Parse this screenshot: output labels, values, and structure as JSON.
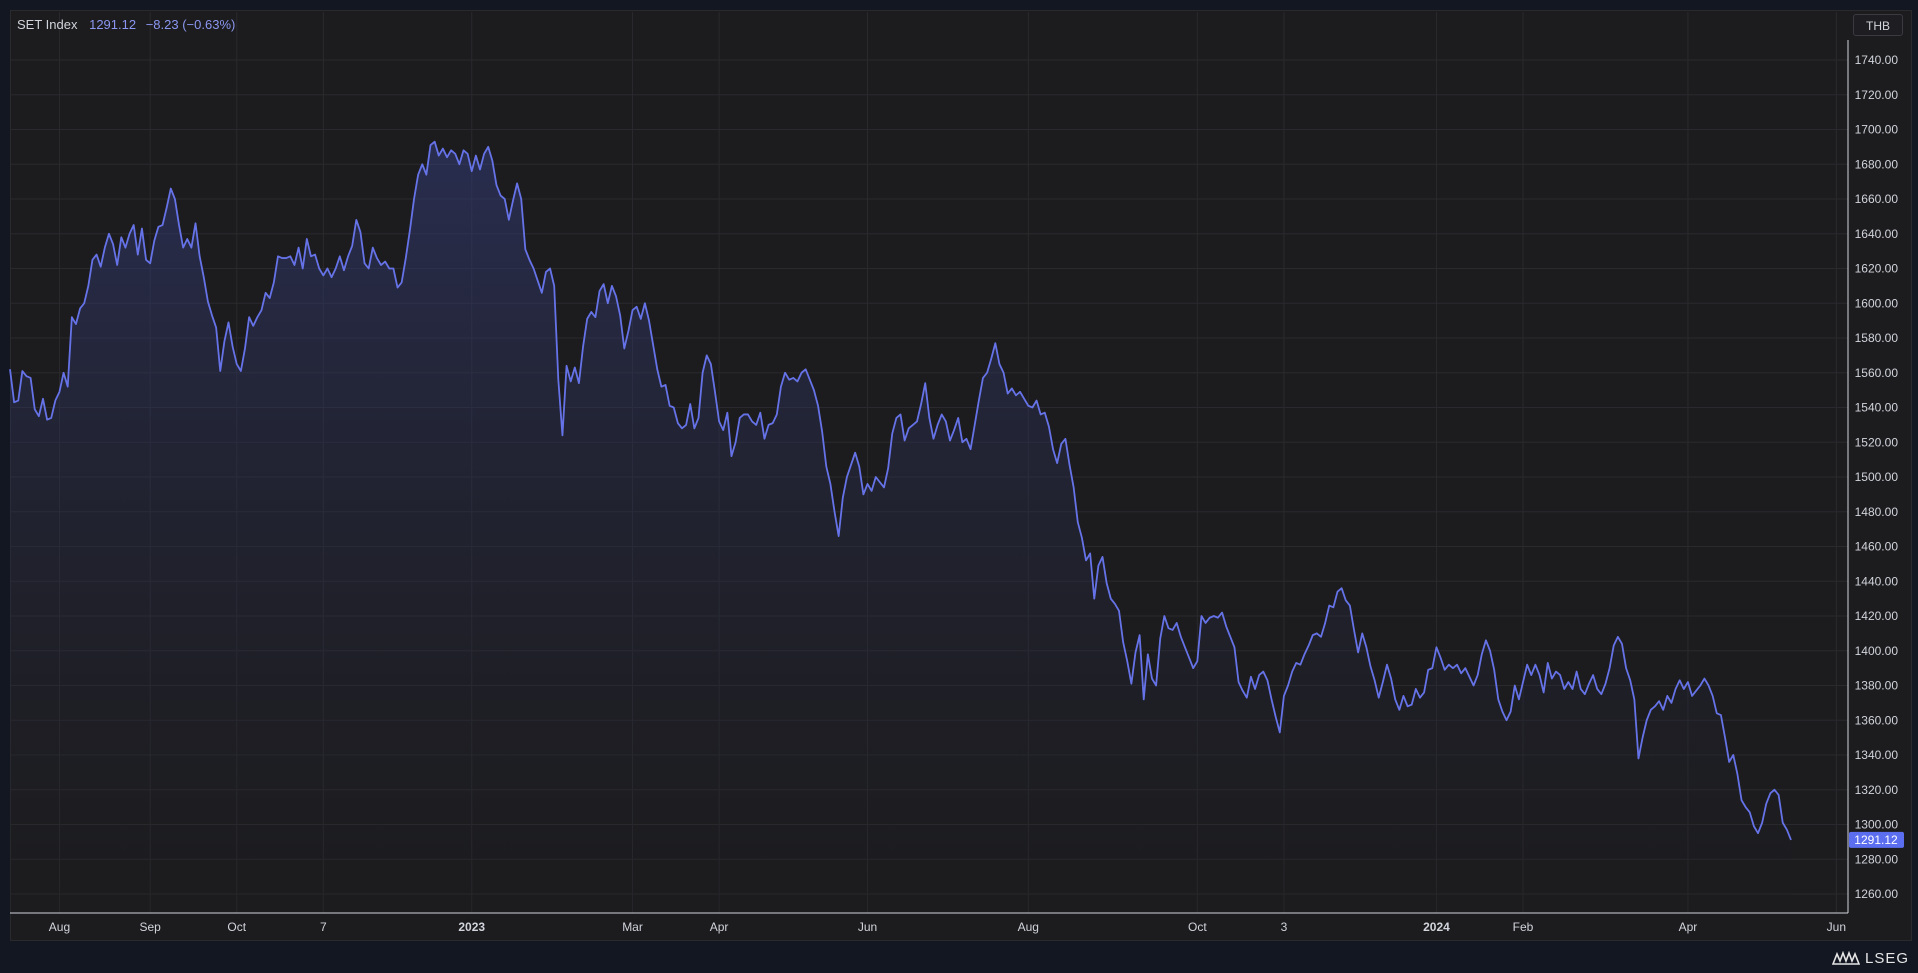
{
  "legend": {
    "name": "SET Index",
    "value": "1291.12",
    "change": "−8.23 (−0.63%)"
  },
  "currency_button": "THB",
  "logo_text": "LSEG",
  "colors": {
    "line": "#6673e8",
    "fill_top": "#343c78",
    "background": "#1c1c1e",
    "price_tag": "#5b6ef0"
  },
  "chart_data": {
    "type": "area",
    "title": "SET Index",
    "y_range": [
      1250,
      1750
    ],
    "last_value": "1291.12",
    "y_ticks": [
      "1740.00",
      "1720.00",
      "1700.00",
      "1680.00",
      "1660.00",
      "1640.00",
      "1620.00",
      "1600.00",
      "1580.00",
      "1560.00",
      "1540.00",
      "1520.00",
      "1500.00",
      "1480.00",
      "1460.00",
      "1440.00",
      "1420.00",
      "1400.00",
      "1380.00",
      "1360.00",
      "1340.00",
      "1320.00",
      "1300.00",
      "1280.00",
      "1260.00"
    ],
    "x_ticks": [
      {
        "label": "Aug",
        "index": 12,
        "bold": false
      },
      {
        "label": "Sep",
        "index": 34,
        "bold": false
      },
      {
        "label": "Oct",
        "index": 55,
        "bold": false
      },
      {
        "label": "7",
        "index": 76,
        "bold": false
      },
      {
        "label": "2023",
        "index": 112,
        "bold": true
      },
      {
        "label": "Mar",
        "index": 151,
        "bold": false
      },
      {
        "label": "Apr",
        "index": 172,
        "bold": false
      },
      {
        "label": "Jun",
        "index": 208,
        "bold": false
      },
      {
        "label": "Aug",
        "index": 247,
        "bold": false
      },
      {
        "label": "Oct",
        "index": 288,
        "bold": false
      },
      {
        "label": "3",
        "index": 309,
        "bold": false
      },
      {
        "label": "2024",
        "index": 346,
        "bold": true
      },
      {
        "label": "Feb",
        "index": 367,
        "bold": false
      },
      {
        "label": "Apr",
        "index": 407,
        "bold": false
      },
      {
        "label": "Jun",
        "index": 443,
        "bold": false
      }
    ],
    "series": [
      {
        "values": [
          1562,
          1543,
          1544,
          1561,
          1558,
          1557,
          1539,
          1535,
          1545,
          1533,
          1534,
          1544,
          1549,
          1560,
          1552,
          1592,
          1588,
          1597,
          1600,
          1610,
          1625,
          1628,
          1621,
          1632,
          1640,
          1634,
          1622,
          1638,
          1632,
          1640,
          1645,
          1628,
          1643,
          1625,
          1623,
          1636,
          1644,
          1645,
          1655,
          1666,
          1660,
          1645,
          1632,
          1637,
          1632,
          1646,
          1627,
          1615,
          1601,
          1593,
          1586,
          1561,
          1578,
          1589,
          1575,
          1565,
          1561,
          1574,
          1592,
          1587,
          1592,
          1596,
          1606,
          1603,
          1612,
          1627,
          1626,
          1626,
          1627,
          1622,
          1632,
          1620,
          1637,
          1627,
          1628,
          1620,
          1616,
          1620,
          1615,
          1620,
          1627,
          1619,
          1627,
          1633,
          1648,
          1641,
          1623,
          1620,
          1632,
          1626,
          1622,
          1624,
          1620,
          1620,
          1609,
          1612,
          1626,
          1642,
          1660,
          1674,
          1680,
          1674,
          1691,
          1693,
          1685,
          1689,
          1684,
          1688,
          1686,
          1680,
          1688,
          1686,
          1676,
          1685,
          1677,
          1686,
          1690,
          1682,
          1668,
          1662,
          1660,
          1648,
          1659,
          1669,
          1660,
          1631,
          1625,
          1620,
          1613,
          1606,
          1618,
          1620,
          1610,
          1556,
          1524,
          1564,
          1555,
          1563,
          1554,
          1575,
          1591,
          1595,
          1592,
          1607,
          1611,
          1600,
          1610,
          1604,
          1593,
          1574,
          1584,
          1596,
          1598,
          1591,
          1600,
          1590,
          1576,
          1562,
          1552,
          1553,
          1541,
          1540,
          1531,
          1528,
          1530,
          1542,
          1528,
          1534,
          1560,
          1570,
          1565,
          1549,
          1532,
          1527,
          1537,
          1512,
          1520,
          1534,
          1536,
          1536,
          1532,
          1530,
          1537,
          1522,
          1530,
          1531,
          1536,
          1552,
          1560,
          1556,
          1557,
          1555,
          1560,
          1562,
          1556,
          1550,
          1541,
          1526,
          1506,
          1496,
          1480,
          1466,
          1488,
          1500,
          1507,
          1514,
          1506,
          1490,
          1496,
          1492,
          1500,
          1497,
          1494,
          1505,
          1525,
          1534,
          1536,
          1521,
          1528,
          1530,
          1532,
          1542,
          1554,
          1534,
          1522,
          1530,
          1536,
          1532,
          1521,
          1527,
          1534,
          1520,
          1522,
          1516,
          1530,
          1544,
          1557,
          1560,
          1568,
          1577,
          1565,
          1560,
          1548,
          1551,
          1547,
          1549,
          1545,
          1541,
          1540,
          1544,
          1536,
          1537,
          1529,
          1516,
          1508,
          1519,
          1522,
          1507,
          1494,
          1474,
          1465,
          1452,
          1456,
          1430,
          1449,
          1454,
          1439,
          1430,
          1427,
          1423,
          1405,
          1394,
          1381,
          1399,
          1409,
          1372,
          1398,
          1384,
          1380,
          1407,
          1420,
          1413,
          1412,
          1416,
          1408,
          1402,
          1396,
          1390,
          1394,
          1420,
          1416,
          1419,
          1420,
          1419,
          1422,
          1414,
          1408,
          1402,
          1382,
          1377,
          1373,
          1385,
          1378,
          1386,
          1388,
          1383,
          1372,
          1362,
          1353,
          1374,
          1380,
          1388,
          1393,
          1392,
          1398,
          1403,
          1409,
          1410,
          1408,
          1416,
          1426,
          1425,
          1434,
          1436,
          1429,
          1426,
          1412,
          1399,
          1410,
          1402,
          1391,
          1383,
          1373,
          1382,
          1392,
          1384,
          1372,
          1366,
          1374,
          1368,
          1369,
          1378,
          1373,
          1376,
          1389,
          1390,
          1402,
          1396,
          1389,
          1392,
          1390,
          1392,
          1387,
          1390,
          1385,
          1380,
          1386,
          1398,
          1406,
          1400,
          1389,
          1372,
          1365,
          1360,
          1365,
          1380,
          1372,
          1382,
          1392,
          1386,
          1392,
          1386,
          1376,
          1393,
          1384,
          1388,
          1386,
          1378,
          1382,
          1378,
          1388,
          1378,
          1375,
          1381,
          1386,
          1378,
          1375,
          1381,
          1390,
          1403,
          1408,
          1404,
          1390,
          1383,
          1372,
          1338,
          1350,
          1360,
          1366,
          1368,
          1371,
          1366,
          1374,
          1370,
          1378,
          1383,
          1378,
          1382,
          1374,
          1377,
          1380,
          1384,
          1380,
          1374,
          1364,
          1363,
          1350,
          1336,
          1340,
          1329,
          1314,
          1310,
          1307,
          1299,
          1295,
          1301,
          1312,
          1318,
          1320,
          1317,
          1301,
          1297,
          1291.12
        ]
      }
    ]
  }
}
